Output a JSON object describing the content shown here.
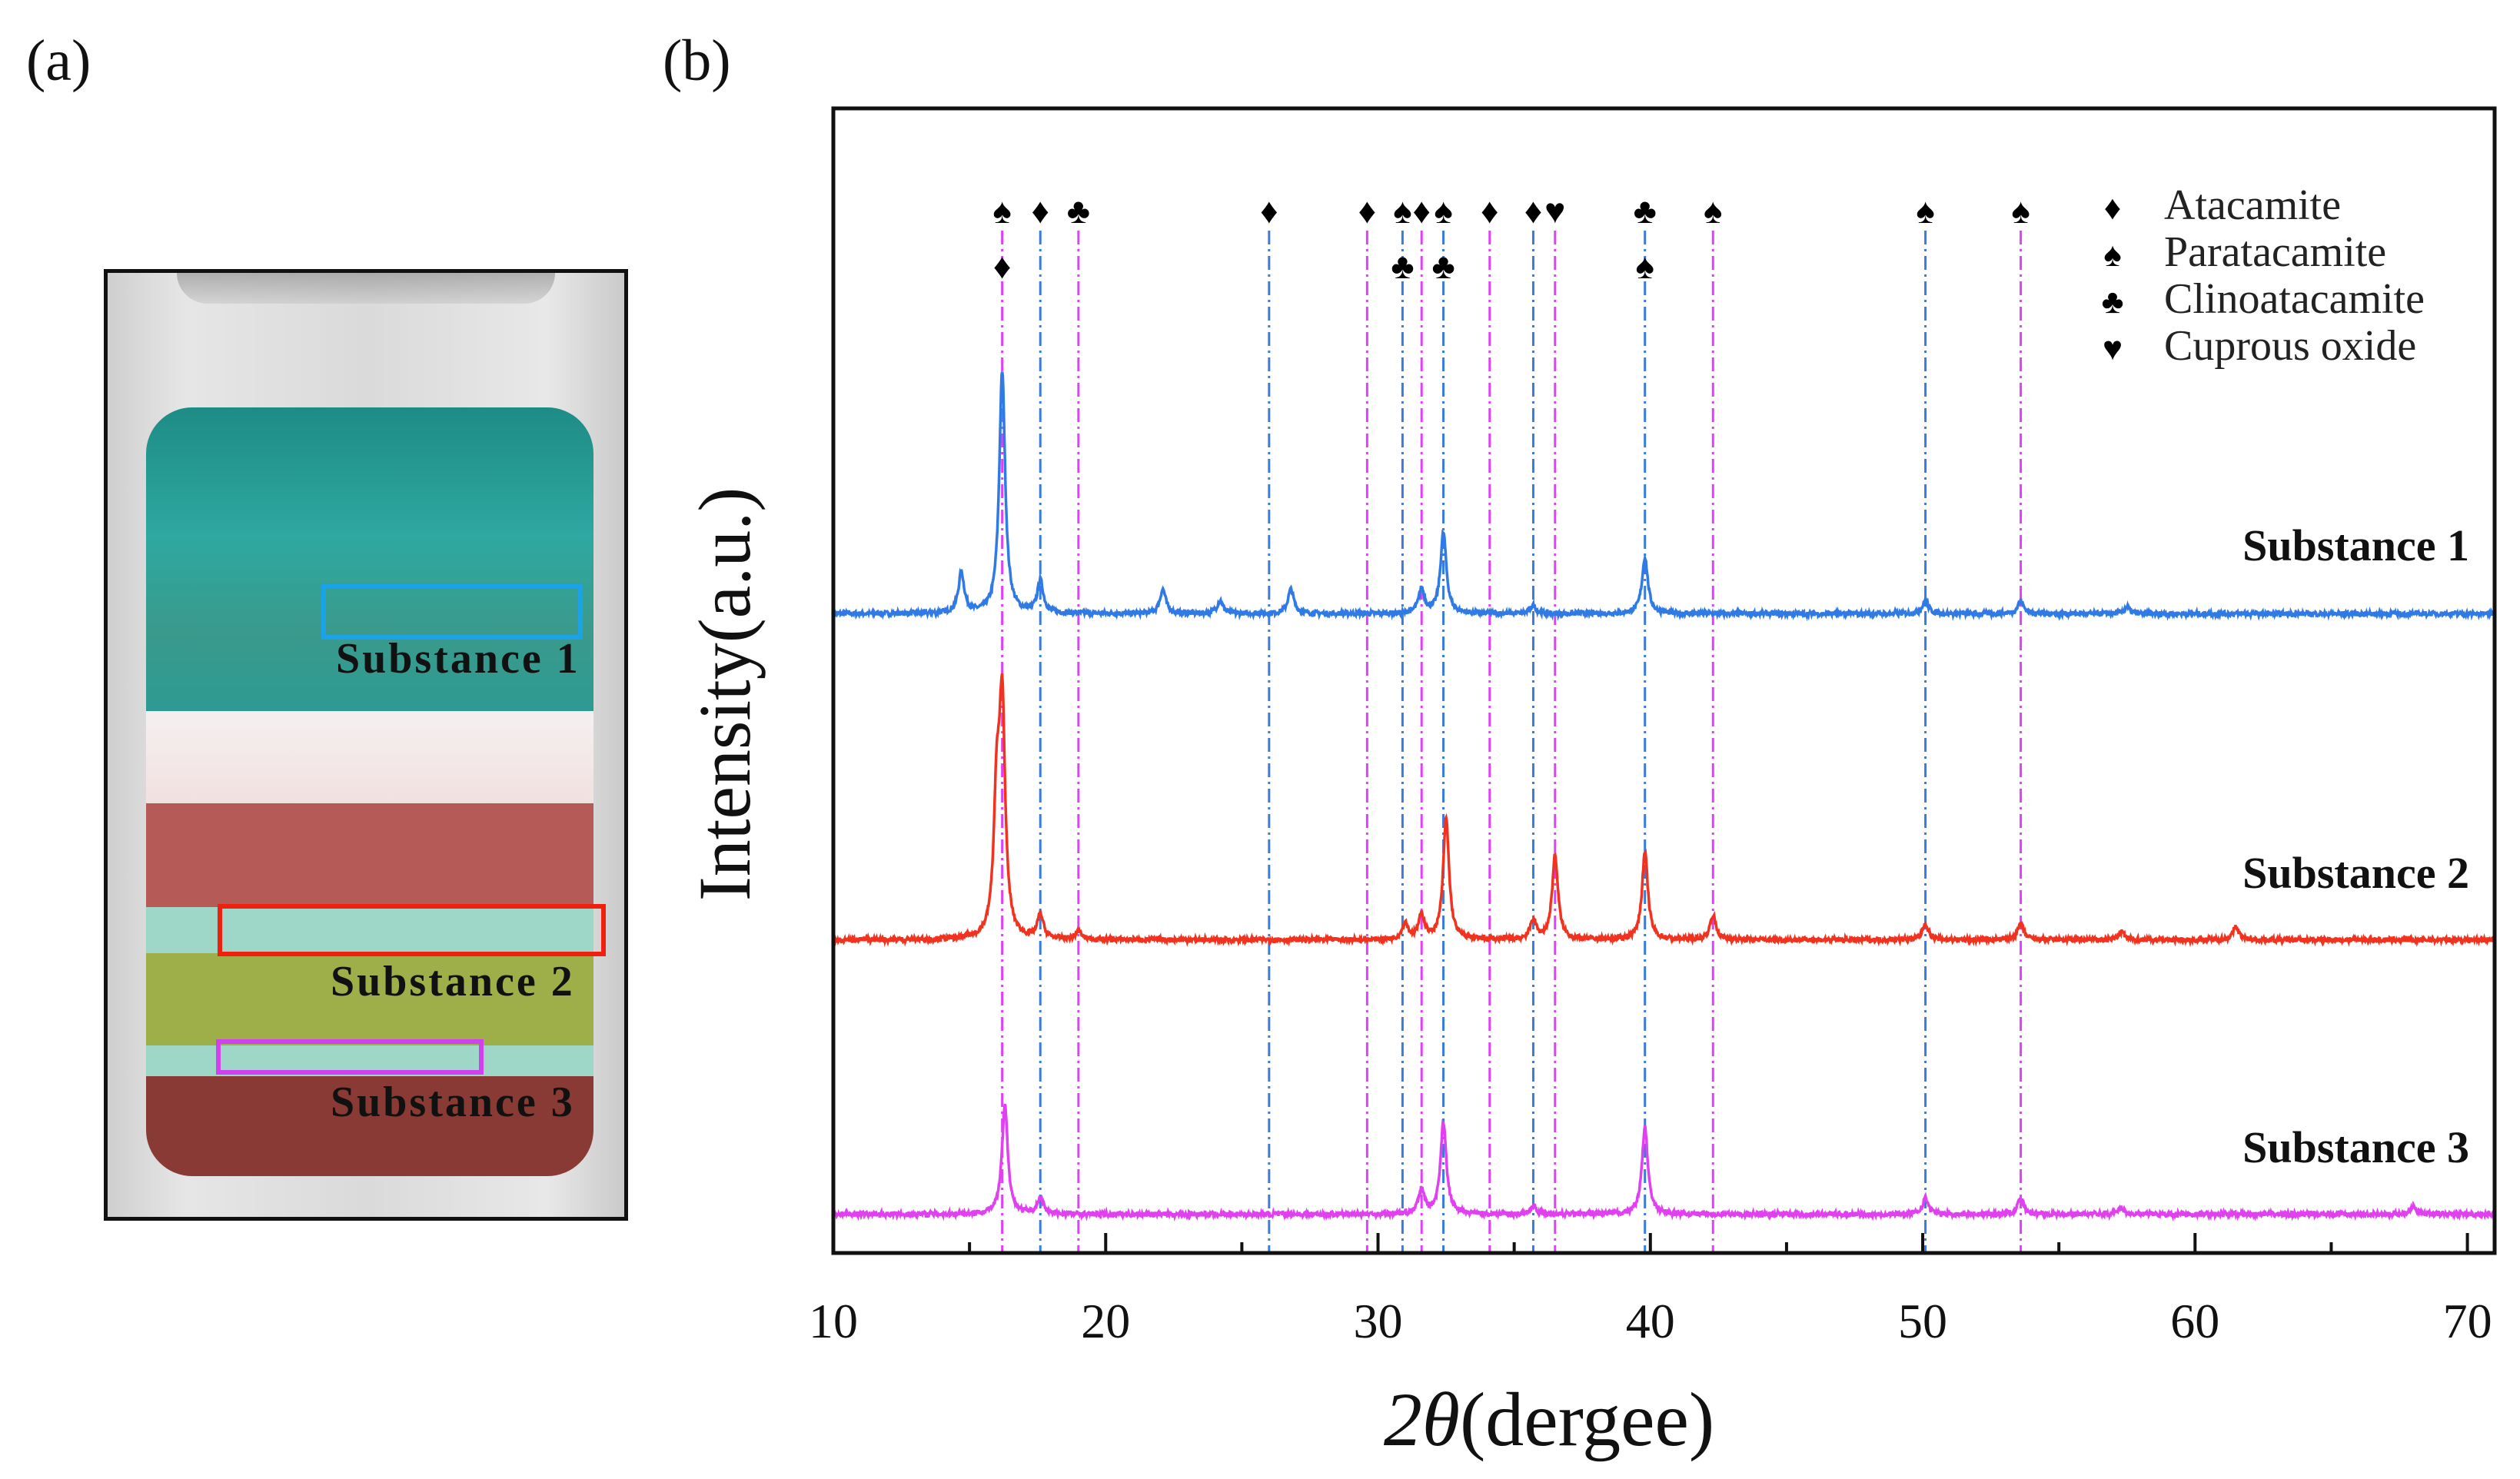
{
  "panel_a": {
    "label": "(a)",
    "labels": [
      "Substance  1",
      "Substance  2",
      "Substance  3"
    ],
    "box_colors": [
      "#1aa3e8",
      "#f02010",
      "#d040f0"
    ]
  },
  "panel_b": {
    "label": "(b)"
  },
  "chart_data": {
    "type": "line",
    "xlabel_symbol": "2θ",
    "xlabel_unit": "(dergee)",
    "ylabel": "Intensity(a.u.)",
    "xlim": [
      10,
      71
    ],
    "ylim": [
      0,
      709
    ],
    "xticks": [
      10,
      20,
      30,
      40,
      50,
      60,
      70
    ],
    "grid": false,
    "legend": {
      "placement": "top-right",
      "entries": [
        {
          "symbol": "♦",
          "label": "Atacamite"
        },
        {
          "symbol": "♠",
          "label": "Paratacamite"
        },
        {
          "symbol": "♣",
          "label": "Clinoatacamite"
        },
        {
          "symbol": "♥",
          "label": "Cuprous oxide"
        }
      ]
    },
    "reference_lines": [
      {
        "x": 16.2,
        "color": "#e040fb",
        "symbols": [
          "♠",
          "♦"
        ]
      },
      {
        "x": 17.6,
        "color": "#3a7be0",
        "symbols": [
          "♦"
        ]
      },
      {
        "x": 19.0,
        "color": "#e040fb",
        "symbols": [
          "♣"
        ]
      },
      {
        "x": 26.0,
        "color": "#3a7be0",
        "symbols": [
          "♦"
        ]
      },
      {
        "x": 29.6,
        "color": "#e040fb",
        "symbols": [
          "♦"
        ]
      },
      {
        "x": 30.9,
        "color": "#3a7be0",
        "symbols": [
          "♠",
          "♣"
        ]
      },
      {
        "x": 31.6,
        "color": "#e040fb",
        "symbols": [
          "♦"
        ]
      },
      {
        "x": 32.4,
        "color": "#3a7be0",
        "symbols": [
          "♠",
          "♣"
        ]
      },
      {
        "x": 34.1,
        "color": "#e040fb",
        "symbols": [
          "♦"
        ]
      },
      {
        "x": 35.7,
        "color": "#3a7be0",
        "symbols": [
          "♦"
        ]
      },
      {
        "x": 36.5,
        "color": "#e040fb",
        "symbols": [
          "♥"
        ]
      },
      {
        "x": 39.8,
        "color": "#3a7be0",
        "symbols": [
          "♣",
          "♠"
        ]
      },
      {
        "x": 42.3,
        "color": "#e040fb",
        "symbols": [
          "♠"
        ]
      },
      {
        "x": 50.1,
        "color": "#3a7be0",
        "symbols": [
          "♠"
        ]
      },
      {
        "x": 53.6,
        "color": "#e040fb",
        "symbols": [
          "♠"
        ]
      }
    ],
    "series": [
      {
        "name": "Substance 1",
        "color": "#2f7ae5",
        "offset": 396,
        "peaks": [
          [
            14.7,
            25
          ],
          [
            16.2,
            150
          ],
          [
            17.6,
            20
          ],
          [
            22.1,
            15
          ],
          [
            24.2,
            8
          ],
          [
            26.8,
            15
          ],
          [
            31.6,
            15
          ],
          [
            32.4,
            50
          ],
          [
            35.7,
            5
          ],
          [
            39.8,
            35
          ],
          [
            50.1,
            8
          ],
          [
            53.6,
            8
          ],
          [
            57.5,
            4
          ]
        ]
      },
      {
        "name": "Substance 2",
        "color": "#f0321e",
        "offset": 194,
        "peaks": [
          [
            16.0,
            80
          ],
          [
            16.2,
            140
          ],
          [
            17.6,
            15
          ],
          [
            19.0,
            5
          ],
          [
            31.0,
            10
          ],
          [
            31.6,
            15
          ],
          [
            32.5,
            75
          ],
          [
            35.7,
            12
          ],
          [
            36.5,
            52
          ],
          [
            39.8,
            54
          ],
          [
            42.3,
            15
          ],
          [
            50.1,
            10
          ],
          [
            53.6,
            10
          ],
          [
            57.3,
            5
          ],
          [
            61.5,
            8
          ]
        ]
      },
      {
        "name": "Substance 3",
        "color": "#e040f0",
        "offset": 24,
        "peaks": [
          [
            16.3,
            67
          ],
          [
            17.6,
            10
          ],
          [
            31.6,
            15
          ],
          [
            32.4,
            57
          ],
          [
            35.7,
            5
          ],
          [
            39.8,
            54
          ],
          [
            50.1,
            10
          ],
          [
            53.6,
            10
          ],
          [
            57.3,
            4
          ],
          [
            68,
            5
          ]
        ]
      }
    ]
  }
}
